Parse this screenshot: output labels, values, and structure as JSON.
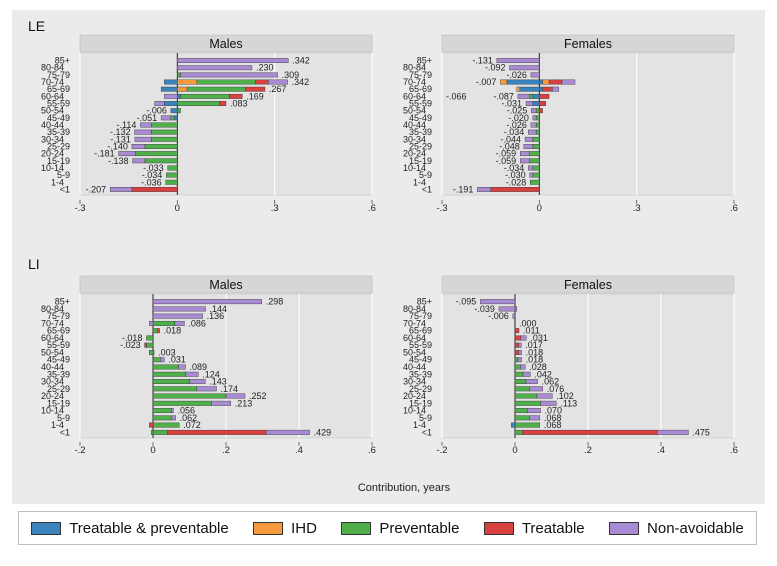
{
  "colors": {
    "treatable_preventable": "#3b83bd",
    "ihd": "#f79a3e",
    "preventable": "#4fb04b",
    "treatable": "#d94040",
    "non_avoidable": "#a98bd4",
    "plot_bg": "#e6e6e6",
    "panel_bg": "#ebebeb"
  },
  "legend": [
    {
      "key": "treatable_preventable",
      "label": "Treatable & preventable"
    },
    {
      "key": "ihd",
      "label": "IHD"
    },
    {
      "key": "preventable",
      "label": "Preventable"
    },
    {
      "key": "treatable",
      "label": "Treatable"
    },
    {
      "key": "non_avoidable",
      "label": "Non-avoidable"
    }
  ],
  "x_axis_title": "Contribution, years",
  "chart_data": [
    {
      "type": "bar",
      "section": "LE",
      "title": "Males",
      "orientation": "horizontal-stacked",
      "xlim": [
        -0.3,
        0.6
      ],
      "xticks": [
        "-.3",
        "0",
        ".3",
        ".6"
      ],
      "xtick_values": [
        -0.3,
        0,
        0.3,
        0.6
      ],
      "categories": [
        "85+",
        "80-84",
        "75-79",
        "70-74",
        "65-69",
        "60-64",
        "55-59",
        "50-54",
        "45-49",
        "40-44",
        "35-39",
        "30-34",
        "25-29",
        "20-24",
        "15-19",
        "10-14",
        "5-9",
        "1-4",
        "<1"
      ],
      "totals": [
        0.342,
        0.23,
        0.309,
        0.342,
        0.267,
        0.169,
        0.083,
        -0.006,
        -0.051,
        -0.114,
        -0.132,
        -0.131,
        -0.14,
        -0.181,
        -0.138,
        -0.033,
        -0.034,
        -0.036,
        -0.207
      ],
      "labels": [
        ".342",
        ".230",
        ".309",
        ".342",
        ".267",
        ".169",
        ".083",
        "-.006",
        "-.051",
        "-.114",
        "-.132",
        "-.131",
        "-.140",
        "-.181",
        "-.138",
        "-.033",
        "-.034",
        "-.036",
        "-.207"
      ],
      "positive_components": [
        {
          "non_avoidable": 0.342
        },
        {
          "non_avoidable": 0.23
        },
        {
          "preventable": 0.01,
          "non_avoidable": 0.299
        },
        {
          "ihd": 0.06,
          "preventable": 0.18,
          "treatable": 0.04,
          "non_avoidable": 0.06
        },
        {
          "ihd": 0.03,
          "preventable": 0.18,
          "treatable": 0.06
        },
        {
          "treatable_preventable": 0.01,
          "preventable": 0.15,
          "treatable": 0.04
        },
        {
          "preventable": 0.13,
          "treatable": 0.02
        },
        {
          "preventable": 0.01
        },
        {},
        {},
        {},
        {},
        {},
        {},
        {},
        {},
        {},
        {},
        {}
      ],
      "negative_components": [
        {},
        {},
        {},
        {
          "treatable_preventable": 0.04
        },
        {
          "treatable_preventable": 0.05
        },
        {
          "non_avoidable": 0.04
        },
        {
          "treatable_preventable": 0.04,
          "non_avoidable": 0.03
        },
        {
          "treatable_preventable": 0.02
        },
        {
          "treatable_preventable": 0.01,
          "preventable": 0.01,
          "non_avoidable": 0.03
        },
        {
          "preventable": 0.08,
          "non_avoidable": 0.034
        },
        {
          "preventable": 0.08,
          "non_avoidable": 0.052
        },
        {
          "preventable": 0.08,
          "non_avoidable": 0.051
        },
        {
          "preventable": 0.1,
          "non_avoidable": 0.04
        },
        {
          "preventable": 0.13,
          "non_avoidable": 0.051
        },
        {
          "preventable": 0.1,
          "non_avoidable": 0.038
        },
        {
          "preventable": 0.03
        },
        {
          "preventable": 0.034
        },
        {
          "preventable": 0.036
        },
        {
          "treatable": 0.14,
          "non_avoidable": 0.067
        }
      ]
    },
    {
      "type": "bar",
      "section": "LE",
      "title": "Females",
      "orientation": "horizontal-stacked",
      "xlim": [
        -0.3,
        0.6
      ],
      "xticks": [
        "-.3",
        "0",
        ".3",
        ".6"
      ],
      "xtick_values": [
        -0.3,
        0,
        0.3,
        0.6
      ],
      "categories": [
        "85+",
        "80-84",
        "75-79",
        "70-74",
        "65-69",
        "60-64",
        "55-59",
        "50-54",
        "45-49",
        "40-44",
        "35-39",
        "30-34",
        "25-29",
        "20-24",
        "15-19",
        "10-14",
        "5-9",
        "1-4",
        "<1"
      ],
      "totals": [
        -0.131,
        -0.092,
        -0.026,
        -0.007,
        null,
        -0.087,
        -0.031,
        -0.025,
        -0.02,
        -0.026,
        -0.034,
        -0.044,
        -0.048,
        -0.059,
        -0.059,
        -0.034,
        -0.03,
        -0.028,
        -0.191
      ],
      "labels": [
        "-.131",
        "-.092",
        "-.026",
        "-.007",
        "",
        "-.087",
        "-.031",
        "-.025",
        "-.020",
        "-.026",
        "-.034",
        "-.044",
        "-.048",
        "-.059",
        "-.059",
        "-.034",
        "-.030",
        "-.028",
        "-.191"
      ],
      "extra_labels": [
        {
          "row": 5,
          "text": "-.066"
        }
      ],
      "positive_components": [
        {},
        {},
        {},
        {
          "treatable_preventable": 0.01,
          "ihd": 0.02,
          "treatable": 0.04,
          "non_avoidable": 0.04
        },
        {
          "treatable_preventable": 0.01,
          "treatable": 0.03,
          "non_avoidable": 0.02
        },
        {
          "treatable": 0.03
        },
        {
          "treatable": 0.02
        },
        {
          "treatable": 0.01
        },
        {},
        {},
        {},
        {},
        {},
        {},
        {},
        {},
        {},
        {},
        {}
      ],
      "negative_components": [
        {
          "non_avoidable": 0.131
        },
        {
          "non_avoidable": 0.092
        },
        {
          "non_avoidable": 0.026
        },
        {
          "treatable_preventable": 0.1,
          "ihd": 0.02
        },
        {
          "treatable_preventable": 0.06,
          "ihd": 0.01
        },
        {
          "treatable_preventable": 0.02,
          "preventable": 0.01,
          "non_avoidable": 0.036
        },
        {
          "treatable_preventable": 0.02,
          "non_avoidable": 0.021
        },
        {
          "preventable": 0.01,
          "non_avoidable": 0.015
        },
        {
          "preventable": 0.01,
          "non_avoidable": 0.01
        },
        {
          "preventable": 0.01,
          "non_avoidable": 0.016
        },
        {
          "preventable": 0.01,
          "non_avoidable": 0.024
        },
        {
          "preventable": 0.02,
          "non_avoidable": 0.024
        },
        {
          "preventable": 0.02,
          "non_avoidable": 0.028
        },
        {
          "preventable": 0.03,
          "non_avoidable": 0.029
        },
        {
          "preventable": 0.03,
          "non_avoidable": 0.029
        },
        {
          "preventable": 0.02,
          "non_avoidable": 0.014
        },
        {
          "preventable": 0.02,
          "non_avoidable": 0.01
        },
        {
          "preventable": 0.028
        },
        {
          "treatable": 0.15,
          "non_avoidable": 0.041
        }
      ]
    },
    {
      "type": "bar",
      "section": "LI",
      "title": "Males",
      "orientation": "horizontal-stacked",
      "xlim": [
        -0.2,
        0.6
      ],
      "xticks": [
        "-.2",
        "0",
        ".2",
        ".4",
        ".6"
      ],
      "xtick_values": [
        -0.2,
        0,
        0.2,
        0.4,
        0.6
      ],
      "categories": [
        "85+",
        "80-84",
        "75-79",
        "70-74",
        "65-69",
        "60-64",
        "55-59",
        "50-54",
        "45-49",
        "40-44",
        "35-39",
        "30-34",
        "25-29",
        "20-24",
        "15-19",
        "10-14",
        "5-9",
        "1-4",
        "<1"
      ],
      "totals": [
        0.298,
        0.144,
        0.136,
        0.086,
        0.018,
        -0.018,
        -0.023,
        0.003,
        0.031,
        0.089,
        0.124,
        0.143,
        0.174,
        0.252,
        0.213,
        0.056,
        0.062,
        0.072,
        0.429
      ],
      "labels": [
        ".298",
        ".144",
        ".136",
        ".086",
        ".018",
        "-.018",
        "-.023",
        ".003",
        ".031",
        ".089",
        ".124",
        ".143",
        ".174",
        ".252",
        ".213",
        ".056",
        ".062",
        ".072",
        ".429"
      ],
      "positive_components": [
        {
          "non_avoidable": 0.298
        },
        {
          "non_avoidable": 0.144
        },
        {
          "non_avoidable": 0.136
        },
        {
          "preventable": 0.06,
          "non_avoidable": 0.026
        },
        {
          "treatable": 0.005,
          "preventable": 0.013
        },
        {},
        {},
        {
          "non_avoidable": 0.003
        },
        {
          "preventable": 0.02,
          "non_avoidable": 0.011
        },
        {
          "preventable": 0.07,
          "non_avoidable": 0.019
        },
        {
          "preventable": 0.09,
          "non_avoidable": 0.034
        },
        {
          "preventable": 0.1,
          "non_avoidable": 0.043
        },
        {
          "preventable": 0.12,
          "non_avoidable": 0.054
        },
        {
          "preventable": 0.2,
          "non_avoidable": 0.052
        },
        {
          "preventable": 0.16,
          "non_avoidable": 0.053
        },
        {
          "preventable": 0.05,
          "non_avoidable": 0.006
        },
        {
          "preventable": 0.05,
          "non_avoidable": 0.012
        },
        {
          "preventable": 0.072
        },
        {
          "preventable": 0.04,
          "treatable": 0.27,
          "non_avoidable": 0.119
        }
      ],
      "negative_components": [
        {},
        {},
        {},
        {
          "non_avoidable": 0.01
        },
        {},
        {
          "preventable": 0.018
        },
        {
          "treatable": 0.005,
          "preventable": 0.018
        },
        {
          "preventable": 0.01
        },
        {},
        {},
        {},
        {},
        {},
        {},
        {},
        {},
        {},
        {
          "treatable": 0.01
        },
        {
          "preventable": 0.005
        }
      ]
    },
    {
      "type": "bar",
      "section": "LI",
      "title": "Females",
      "orientation": "horizontal-stacked",
      "xlim": [
        -0.2,
        0.6
      ],
      "xticks": [
        "-.2",
        "0",
        ".2",
        ".4",
        ".6"
      ],
      "xtick_values": [
        -0.2,
        0,
        0.2,
        0.4,
        0.6
      ],
      "categories": [
        "85+",
        "80-84",
        "75-79",
        "70-74",
        "65-69",
        "60-64",
        "55-59",
        "50-54",
        "45-49",
        "40-44",
        "35-39",
        "30-34",
        "25-29",
        "20-24",
        "15-19",
        "10-14",
        "5-9",
        "1-4",
        "<1"
      ],
      "totals": [
        -0.095,
        -0.039,
        -0.006,
        0.0,
        0.011,
        0.031,
        0.017,
        0.018,
        0.018,
        0.028,
        0.042,
        0.062,
        0.076,
        0.102,
        0.113,
        0.07,
        0.068,
        0.068,
        0.475
      ],
      "labels": [
        "-.095",
        "-.039",
        "-.006",
        ".000",
        ".011",
        ".031",
        ".017",
        ".018",
        ".018",
        ".028",
        ".042",
        ".062",
        ".076",
        ".102",
        ".113",
        ".070",
        ".068",
        ".068",
        ".475"
      ],
      "positive_components": [
        {},
        {
          "non_avoidable": 0.005
        },
        {},
        {},
        {
          "treatable": 0.011
        },
        {
          "treatable": 0.016,
          "non_avoidable": 0.015
        },
        {
          "treatable": 0.01,
          "non_avoidable": 0.007
        },
        {
          "treatable": 0.01,
          "non_avoidable": 0.008
        },
        {
          "preventable": 0.008,
          "non_avoidable": 0.01
        },
        {
          "preventable": 0.015,
          "non_avoidable": 0.013
        },
        {
          "preventable": 0.022,
          "non_avoidable": 0.02
        },
        {
          "preventable": 0.03,
          "non_avoidable": 0.032
        },
        {
          "preventable": 0.04,
          "non_avoidable": 0.036
        },
        {
          "preventable": 0.06,
          "non_avoidable": 0.042
        },
        {
          "preventable": 0.07,
          "non_avoidable": 0.043
        },
        {
          "preventable": 0.035,
          "non_avoidable": 0.035
        },
        {
          "preventable": 0.04,
          "non_avoidable": 0.028
        },
        {
          "preventable": 0.068
        },
        {
          "preventable": 0.02,
          "treatable": 0.37,
          "non_avoidable": 0.085
        }
      ],
      "negative_components": [
        {
          "non_avoidable": 0.095
        },
        {
          "non_avoidable": 0.044
        },
        {
          "non_avoidable": 0.006
        },
        {},
        {},
        {},
        {},
        {},
        {},
        {},
        {},
        {},
        {},
        {},
        {},
        {},
        {},
        {
          "treatable_preventable": 0.01
        },
        {}
      ]
    }
  ],
  "sections": [
    "LE",
    "LI"
  ]
}
